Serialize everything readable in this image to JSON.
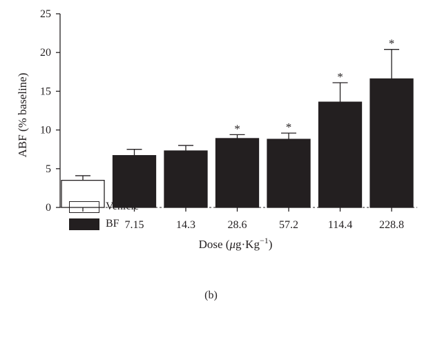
{
  "chart_data": {
    "type": "bar",
    "categories": [
      "V",
      "7.15",
      "14.3",
      "28.6",
      "57.2",
      "114.4",
      "228.8"
    ],
    "values": [
      3.5,
      6.7,
      7.3,
      8.9,
      8.8,
      13.6,
      16.6
    ],
    "errors": [
      0.6,
      0.8,
      0.7,
      0.5,
      0.8,
      2.5,
      3.8
    ],
    "significant": [
      false,
      false,
      false,
      true,
      true,
      true,
      true
    ],
    "bar_colors": [
      "#ffffff",
      "#231f20",
      "#231f20",
      "#231f20",
      "#231f20",
      "#231f20",
      "#231f20"
    ],
    "significance_marker": "*",
    "ylabel": "ABF (% baseline)",
    "xlabel_text": "Dose (",
    "xlabel_mu": "μ",
    "xlabel_rest": "g·Kg",
    "xlabel_exp": "−1",
    "xlabel_close": ")",
    "ylim": [
      0,
      25
    ],
    "yticks": [
      "0",
      "5",
      "10",
      "15",
      "20",
      "25"
    ],
    "legend": [
      {
        "name": "Vehicle",
        "color": "#ffffff"
      },
      {
        "name": "BF",
        "color": "#231f20"
      }
    ],
    "grid": false
  },
  "panel_label": "(b)"
}
